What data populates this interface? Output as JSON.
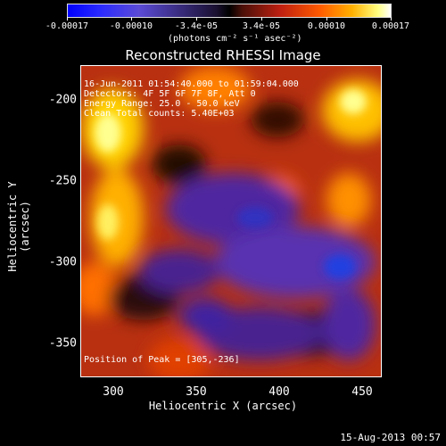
{
  "colorbar": {
    "ticks": [
      "-0.00017",
      "-0.00010",
      "-3.4e-05",
      "3.4e-05",
      "0.00010",
      "0.00017"
    ],
    "units": "(photons cm⁻² s⁻¹ asec⁻²)"
  },
  "title": "Reconstructed RHESSI Image",
  "info": {
    "line1": "16-Jun-2011 01:54:40.000 to 01:59:04.000",
    "line2": "Detectors: 4F 5F 6F 7F 8F, Att 0",
    "line3": "Energy Range: 25.0 - 50.0 keV",
    "line4": "Clean    Total counts: 5.40E+03",
    "peak": "Position of Peak = [305,-236]"
  },
  "axes": {
    "xlabel": "Heliocentric X (arcsec)",
    "ylabel": "Heliocentric Y (arcsec)",
    "xticks": [
      "300",
      "350",
      "400",
      "450"
    ],
    "yticks": [
      "-200",
      "-250",
      "-300",
      "-350"
    ]
  },
  "footer_date": "15-Aug-2013 00:57"
}
